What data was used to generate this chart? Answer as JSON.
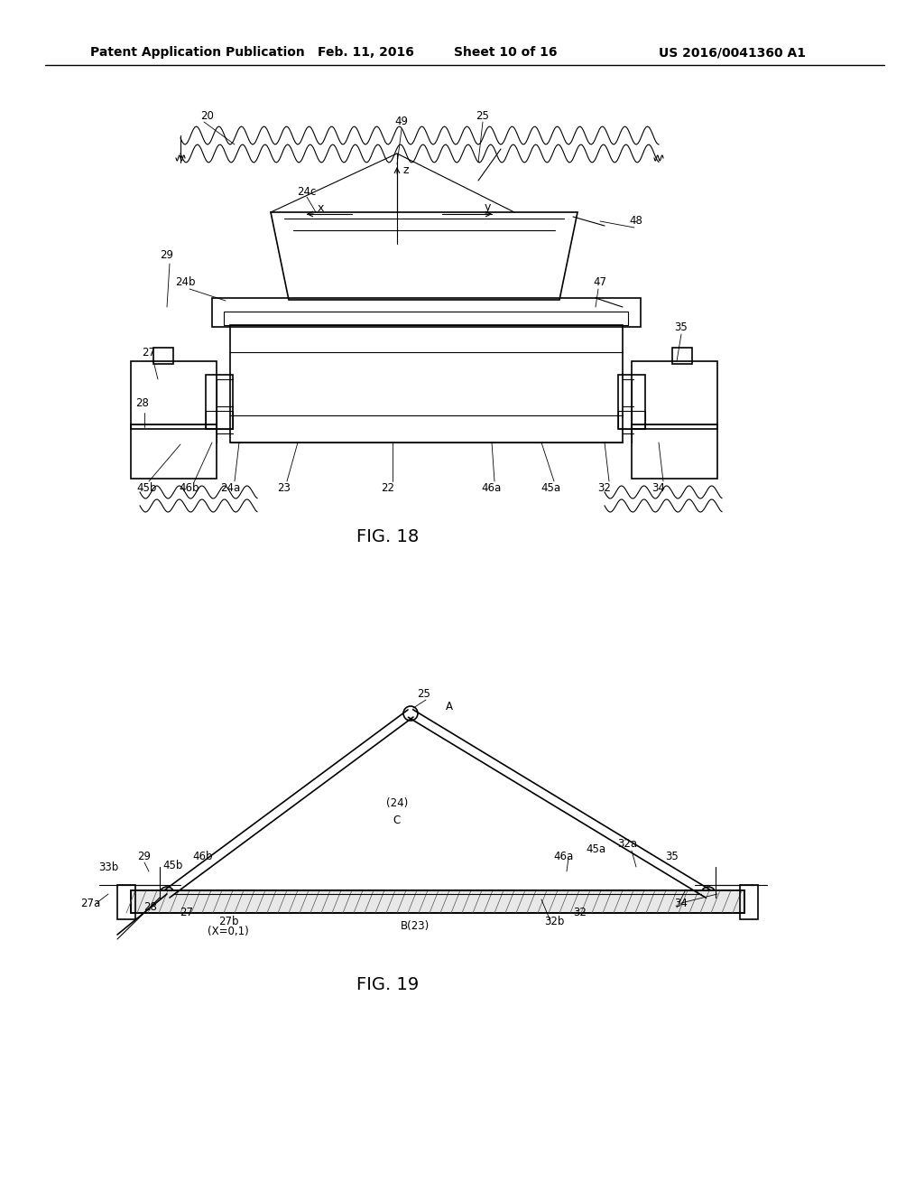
{
  "bg_color": "#ffffff",
  "header_text": "Patent Application Publication",
  "header_date": "Feb. 11, 2016",
  "header_sheet": "Sheet 10 of 16",
  "header_patent": "US 2016/0041360 A1",
  "fig18_label": "FIG. 18",
  "fig19_label": "FIG. 19"
}
